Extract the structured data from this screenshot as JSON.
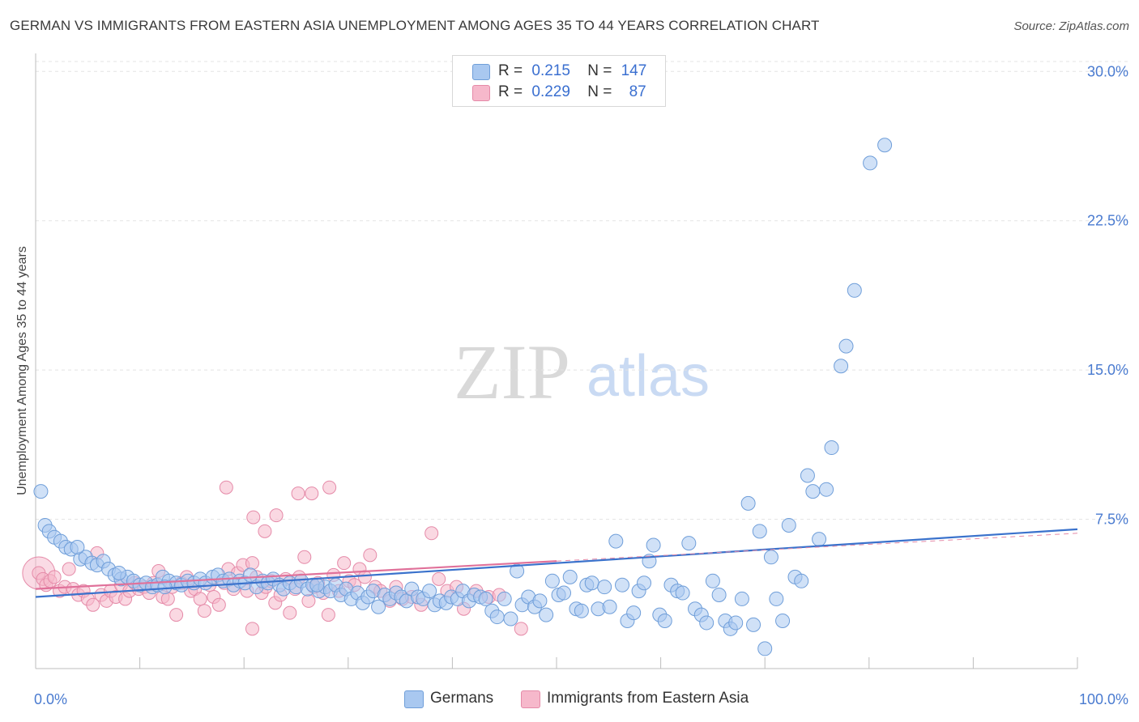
{
  "title": "GERMAN VS IMMIGRANTS FROM EASTERN ASIA UNEMPLOYMENT AMONG AGES 35 TO 44 YEARS CORRELATION CHART",
  "source": "Source: ZipAtlas.com",
  "watermark": {
    "zip": "ZIP",
    "atlas": "atlas"
  },
  "colors": {
    "blue_fill": "#a9c8f0",
    "blue_stroke": "#6f9ed9",
    "blue_line": "#3a72cc",
    "pink_fill": "#f6b8cb",
    "pink_stroke": "#e58aa8",
    "pink_line": "#e0719a",
    "grid": "#e3e3e3",
    "tick_text": "#4a7bd0"
  },
  "stats": [
    {
      "r_label": "R =",
      "r_value": "0.215",
      "n_label": "N =",
      "n_value": "147"
    },
    {
      "r_label": "R =",
      "r_value": "0.229",
      "n_label": "N =",
      "n_value": "87"
    }
  ],
  "legend": [
    {
      "label": "Germans"
    },
    {
      "label": "Immigrants from Eastern Asia"
    }
  ],
  "chart_data": {
    "type": "scatter",
    "title": "GERMAN VS IMMIGRANTS FROM EASTERN ASIA UNEMPLOYMENT AMONG AGES 35 TO 44 YEARS CORRELATION CHART",
    "xlabel": "",
    "ylabel": "Unemployment Among Ages 35 to 44 years",
    "xlim": [
      0,
      100
    ],
    "ylim": [
      0,
      30.5
    ],
    "x_tick_labels": [
      "0.0%",
      "100.0%"
    ],
    "y_ticks": [
      7.5,
      15.0,
      22.5,
      30.0
    ],
    "y_tick_labels": [
      "7.5%",
      "15.0%",
      "22.5%",
      "30.0%"
    ],
    "grid": "horizontal dashed",
    "legend_position": "bottom-center",
    "series": [
      {
        "name": "Germans",
        "color": "#6f9ed9",
        "trend": {
          "x": [
            0,
            100
          ],
          "y": [
            3.6,
            7.0
          ]
        },
        "points": [
          [
            0.5,
            8.9
          ],
          [
            0.9,
            7.2
          ],
          [
            1.3,
            6.9
          ],
          [
            1.8,
            6.6
          ],
          [
            2.4,
            6.4
          ],
          [
            2.9,
            6.1
          ],
          [
            3.4,
            6.0
          ],
          [
            4.3,
            5.5
          ],
          [
            4.8,
            5.6
          ],
          [
            5.4,
            5.3
          ],
          [
            5.9,
            5.2
          ],
          [
            6.5,
            5.4
          ],
          [
            7.0,
            5.0
          ],
          [
            7.6,
            4.7
          ],
          [
            8.2,
            4.5
          ],
          [
            8.8,
            4.6
          ],
          [
            9.4,
            4.4
          ],
          [
            10.0,
            4.2
          ],
          [
            10.6,
            4.3
          ],
          [
            11.2,
            4.1
          ],
          [
            11.7,
            4.2
          ],
          [
            12.2,
            4.6
          ],
          [
            12.8,
            4.4
          ],
          [
            13.5,
            4.3
          ],
          [
            14.0,
            4.2
          ],
          [
            14.6,
            4.4
          ],
          [
            15.2,
            4.3
          ],
          [
            15.8,
            4.5
          ],
          [
            16.3,
            4.3
          ],
          [
            17.0,
            4.6
          ],
          [
            17.5,
            4.7
          ],
          [
            18.0,
            4.4
          ],
          [
            18.6,
            4.5
          ],
          [
            19.0,
            4.2
          ],
          [
            19.6,
            4.4
          ],
          [
            20.1,
            4.3
          ],
          [
            20.6,
            4.7
          ],
          [
            21.2,
            4.1
          ],
          [
            21.8,
            4.4
          ],
          [
            22.3,
            4.3
          ],
          [
            22.8,
            4.5
          ],
          [
            23.4,
            4.2
          ],
          [
            23.8,
            4.0
          ],
          [
            24.4,
            4.3
          ],
          [
            25.0,
            4.1
          ],
          [
            25.5,
            4.4
          ],
          [
            26.1,
            4.0
          ],
          [
            26.6,
            4.2
          ],
          [
            27.2,
            3.9
          ],
          [
            27.8,
            4.1
          ],
          [
            28.3,
            3.9
          ],
          [
            28.8,
            4.2
          ],
          [
            29.3,
            3.7
          ],
          [
            29.8,
            4.0
          ],
          [
            30.3,
            3.5
          ],
          [
            30.9,
            3.8
          ],
          [
            31.4,
            3.3
          ],
          [
            31.9,
            3.6
          ],
          [
            32.4,
            3.9
          ],
          [
            32.9,
            3.1
          ],
          [
            33.5,
            3.7
          ],
          [
            34.0,
            3.5
          ],
          [
            34.6,
            3.8
          ],
          [
            35.1,
            3.6
          ],
          [
            35.6,
            3.4
          ],
          [
            36.1,
            4.0
          ],
          [
            36.7,
            3.6
          ],
          [
            37.2,
            3.5
          ],
          [
            37.8,
            3.9
          ],
          [
            38.3,
            3.2
          ],
          [
            38.8,
            3.4
          ],
          [
            39.4,
            3.3
          ],
          [
            39.9,
            3.6
          ],
          [
            40.5,
            3.5
          ],
          [
            41.0,
            3.9
          ],
          [
            41.6,
            3.4
          ],
          [
            42.1,
            3.7
          ],
          [
            42.7,
            3.6
          ],
          [
            43.2,
            3.5
          ],
          [
            43.8,
            2.9
          ],
          [
            44.3,
            2.6
          ],
          [
            45.0,
            3.5
          ],
          [
            45.6,
            2.5
          ],
          [
            46.2,
            4.9
          ],
          [
            46.7,
            3.2
          ],
          [
            47.3,
            3.6
          ],
          [
            47.9,
            3.1
          ],
          [
            48.4,
            3.4
          ],
          [
            49.0,
            2.7
          ],
          [
            49.6,
            4.4
          ],
          [
            50.2,
            3.7
          ],
          [
            50.7,
            3.8
          ],
          [
            51.3,
            4.6
          ],
          [
            51.9,
            3.0
          ],
          [
            52.4,
            2.9
          ],
          [
            52.9,
            4.2
          ],
          [
            53.4,
            4.3
          ],
          [
            54.0,
            3.0
          ],
          [
            54.6,
            4.1
          ],
          [
            55.1,
            3.1
          ],
          [
            55.7,
            6.4
          ],
          [
            56.3,
            4.2
          ],
          [
            56.8,
            2.4
          ],
          [
            57.4,
            2.8
          ],
          [
            57.9,
            3.9
          ],
          [
            58.4,
            4.3
          ],
          [
            58.9,
            5.4
          ],
          [
            59.3,
            6.2
          ],
          [
            59.9,
            2.7
          ],
          [
            60.4,
            2.4
          ],
          [
            61.0,
            4.2
          ],
          [
            61.6,
            3.9
          ],
          [
            62.1,
            3.8
          ],
          [
            62.7,
            6.3
          ],
          [
            63.3,
            3.0
          ],
          [
            63.9,
            2.7
          ],
          [
            64.4,
            2.3
          ],
          [
            65.0,
            4.4
          ],
          [
            65.6,
            3.7
          ],
          [
            66.2,
            2.4
          ],
          [
            66.7,
            2.0
          ],
          [
            67.2,
            2.3
          ],
          [
            67.8,
            3.5
          ],
          [
            68.4,
            8.3
          ],
          [
            68.9,
            2.2
          ],
          [
            69.5,
            6.9
          ],
          [
            70.0,
            1.0
          ],
          [
            70.6,
            5.6
          ],
          [
            71.1,
            3.5
          ],
          [
            71.7,
            2.4
          ],
          [
            72.3,
            7.2
          ],
          [
            72.9,
            4.6
          ],
          [
            73.5,
            4.4
          ],
          [
            74.1,
            9.7
          ],
          [
            74.6,
            8.9
          ],
          [
            75.2,
            6.5
          ],
          [
            75.9,
            9.0
          ],
          [
            76.4,
            11.1
          ],
          [
            77.3,
            15.2
          ],
          [
            77.8,
            16.2
          ],
          [
            78.6,
            19.0
          ],
          [
            80.1,
            25.4
          ],
          [
            81.5,
            26.3
          ],
          [
            8.0,
            4.8
          ],
          [
            4.0,
            6.1
          ],
          [
            12.4,
            4.1
          ],
          [
            27.0,
            4.2
          ]
        ]
      },
      {
        "name": "Immigrants from Eastern Asia",
        "color": "#e58aa8",
        "trend": {
          "x": [
            0,
            50
          ],
          "y": [
            4.0,
            5.4
          ]
        },
        "points": [
          [
            0.3,
            4.8
          ],
          [
            0.7,
            4.5
          ],
          [
            1.0,
            4.2
          ],
          [
            1.4,
            4.4
          ],
          [
            1.8,
            4.6
          ],
          [
            2.3,
            3.9
          ],
          [
            2.8,
            4.1
          ],
          [
            3.2,
            5.0
          ],
          [
            3.6,
            4.0
          ],
          [
            4.1,
            3.7
          ],
          [
            4.6,
            3.9
          ],
          [
            5.0,
            3.5
          ],
          [
            5.5,
            3.2
          ],
          [
            5.9,
            5.8
          ],
          [
            6.3,
            3.7
          ],
          [
            6.8,
            3.4
          ],
          [
            7.2,
            3.9
          ],
          [
            7.7,
            3.6
          ],
          [
            8.2,
            4.2
          ],
          [
            8.6,
            3.5
          ],
          [
            9.0,
            3.9
          ],
          [
            9.5,
            4.3
          ],
          [
            9.9,
            4.0
          ],
          [
            10.4,
            4.1
          ],
          [
            10.9,
            3.8
          ],
          [
            11.3,
            4.3
          ],
          [
            11.8,
            4.9
          ],
          [
            12.2,
            3.6
          ],
          [
            12.7,
            3.5
          ],
          [
            13.1,
            4.1
          ],
          [
            13.5,
            2.7
          ],
          [
            14.0,
            4.3
          ],
          [
            14.5,
            4.6
          ],
          [
            14.9,
            3.9
          ],
          [
            15.3,
            4.0
          ],
          [
            15.8,
            3.5
          ],
          [
            16.2,
            2.9
          ],
          [
            16.7,
            4.2
          ],
          [
            17.1,
            3.6
          ],
          [
            17.6,
            3.2
          ],
          [
            18.1,
            4.3
          ],
          [
            18.5,
            5.0
          ],
          [
            19.0,
            4.0
          ],
          [
            19.4,
            4.8
          ],
          [
            19.9,
            5.2
          ],
          [
            20.3,
            3.9
          ],
          [
            20.8,
            5.3
          ],
          [
            21.2,
            4.6
          ],
          [
            21.7,
            3.8
          ],
          [
            22.1,
            4.1
          ],
          [
            22.6,
            4.4
          ],
          [
            23.0,
            3.3
          ],
          [
            23.5,
            3.7
          ],
          [
            24.0,
            4.5
          ],
          [
            24.4,
            2.8
          ],
          [
            24.9,
            4.0
          ],
          [
            25.3,
            4.6
          ],
          [
            25.8,
            5.6
          ],
          [
            26.2,
            3.4
          ],
          [
            26.7,
            4.1
          ],
          [
            27.1,
            4.3
          ],
          [
            27.6,
            3.8
          ],
          [
            28.1,
            2.7
          ],
          [
            28.6,
            4.7
          ],
          [
            29.1,
            3.9
          ],
          [
            29.6,
            5.3
          ],
          [
            30.1,
            4.4
          ],
          [
            30.6,
            4.2
          ],
          [
            31.1,
            5.0
          ],
          [
            31.6,
            4.6
          ],
          [
            32.1,
            5.7
          ],
          [
            32.6,
            4.1
          ],
          [
            33.1,
            3.9
          ],
          [
            34.0,
            3.4
          ],
          [
            34.6,
            4.1
          ],
          [
            35.2,
            3.5
          ],
          [
            36.1,
            3.6
          ],
          [
            37.0,
            3.2
          ],
          [
            38.0,
            6.8
          ],
          [
            38.7,
            4.5
          ],
          [
            39.5,
            3.9
          ],
          [
            40.4,
            4.1
          ],
          [
            41.1,
            3.0
          ],
          [
            42.3,
            3.9
          ],
          [
            43.5,
            3.6
          ],
          [
            44.5,
            3.7
          ],
          [
            46.6,
            2.0
          ]
        ],
        "outliers": [
          [
            18.3,
            9.1
          ],
          [
            20.9,
            7.6
          ],
          [
            22.0,
            6.9
          ],
          [
            23.1,
            7.7
          ],
          [
            25.2,
            8.8
          ],
          [
            26.5,
            8.8
          ],
          [
            28.2,
            9.1
          ],
          [
            20.8,
            2.0
          ]
        ]
      }
    ]
  }
}
